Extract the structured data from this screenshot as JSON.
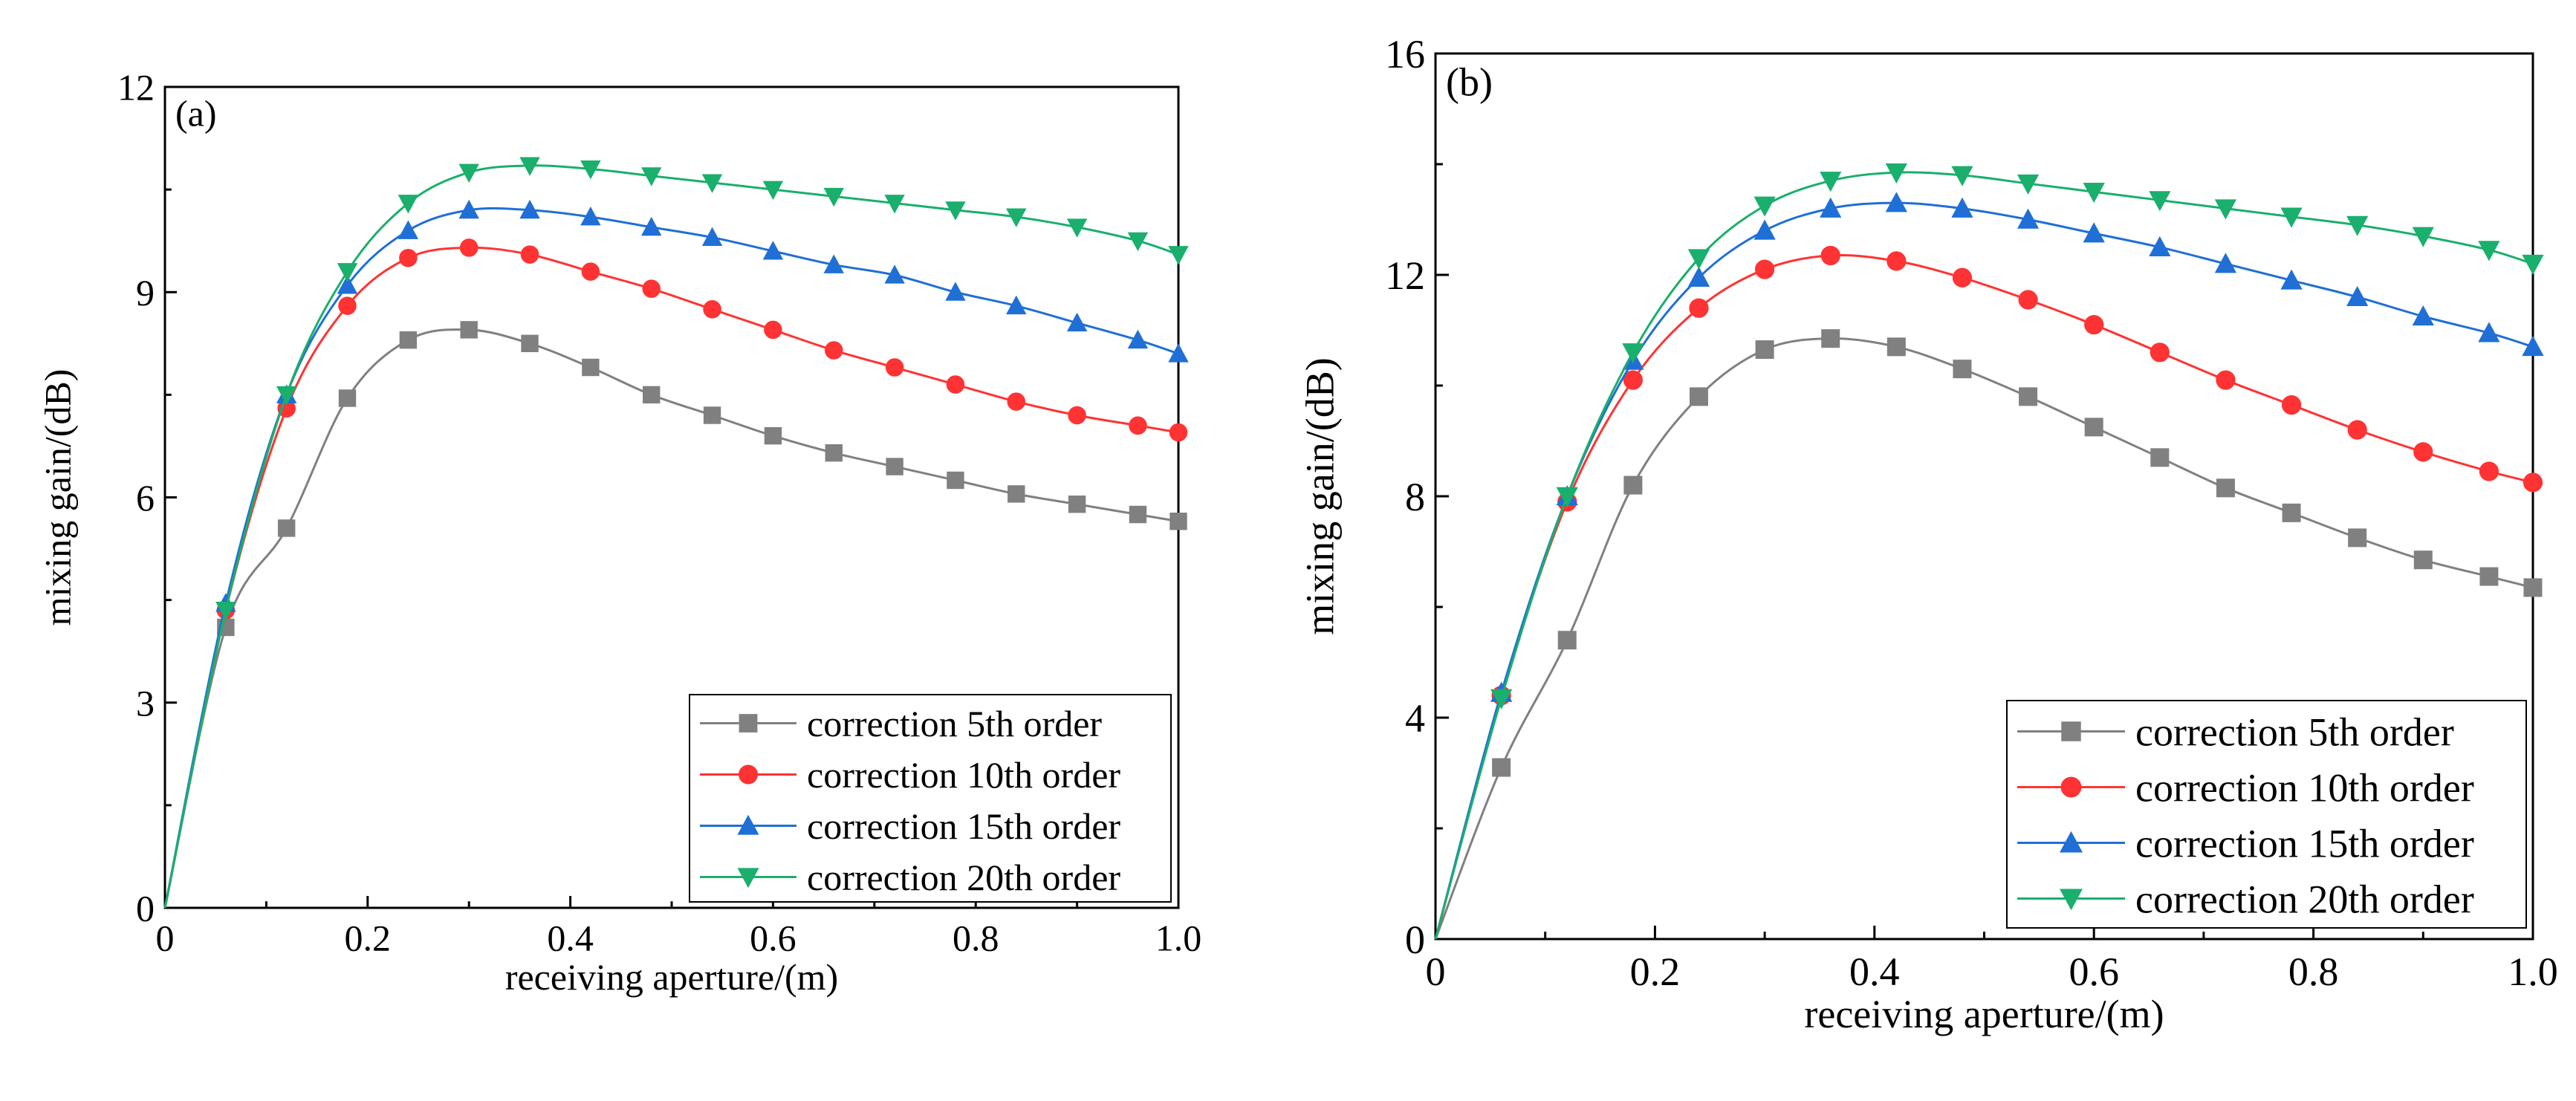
{
  "chart_data": [
    {
      "type": "line",
      "panel_label": "(a)",
      "xlabel": "receiving aperture/(m)",
      "ylabel": "mixing gain/(dB)",
      "xlim": [
        0,
        1.0
      ],
      "ylim": [
        0,
        12
      ],
      "xticks": [
        0,
        0.2,
        0.4,
        0.6,
        0.8,
        1.0
      ],
      "xtick_labels": [
        "0",
        "0.2",
        "0.4",
        "0.6",
        "0.8",
        "1.0"
      ],
      "yticks": [
        0,
        3,
        6,
        9,
        12
      ],
      "ytick_labels": [
        "0",
        "3",
        "6",
        "9",
        "12"
      ],
      "legend_position": "bottom-right",
      "x": [
        0,
        0.06,
        0.12,
        0.18,
        0.24,
        0.3,
        0.36,
        0.42,
        0.48,
        0.54,
        0.6,
        0.66,
        0.72,
        0.78,
        0.84,
        0.9,
        0.96,
        1.0
      ],
      "series": [
        {
          "name": "correction 5th order",
          "color": "#808080",
          "marker": "square",
          "values": [
            0,
            4.1,
            5.55,
            7.45,
            8.3,
            8.45,
            8.25,
            7.9,
            7.5,
            7.2,
            6.9,
            6.65,
            6.45,
            6.25,
            6.05,
            5.9,
            5.75,
            5.65
          ]
        },
        {
          "name": "correction 10th order",
          "color": "#ff3333",
          "marker": "circle",
          "values": [
            0,
            4.35,
            7.3,
            8.8,
            9.5,
            9.65,
            9.55,
            9.3,
            9.05,
            8.75,
            8.45,
            8.15,
            7.9,
            7.65,
            7.4,
            7.2,
            7.05,
            6.95
          ]
        },
        {
          "name": "correction 15th order",
          "color": "#1f6fd6",
          "marker": "triangle-up",
          "values": [
            0,
            4.45,
            7.5,
            9.1,
            9.9,
            10.2,
            10.2,
            10.1,
            9.95,
            9.8,
            9.6,
            9.4,
            9.25,
            9.0,
            8.8,
            8.55,
            8.3,
            8.1
          ]
        },
        {
          "name": "correction 20th order",
          "color": "#1aaf6c",
          "marker": "triangle-down",
          "values": [
            0,
            4.35,
            7.5,
            9.3,
            10.3,
            10.75,
            10.85,
            10.8,
            10.7,
            10.6,
            10.5,
            10.4,
            10.3,
            10.2,
            10.1,
            9.95,
            9.75,
            9.55
          ]
        }
      ]
    },
    {
      "type": "line",
      "panel_label": "(b)",
      "xlabel": "receiving aperture/(m)",
      "ylabel": "mixing gain/(dB)",
      "xlim": [
        0,
        1.0
      ],
      "ylim": [
        0,
        16
      ],
      "xticks": [
        0,
        0.2,
        0.4,
        0.6,
        0.8,
        1.0
      ],
      "xtick_labels": [
        "0",
        "0.2",
        "0.4",
        "0.6",
        "0.8",
        "1.0"
      ],
      "yticks": [
        0,
        4,
        8,
        12,
        16
      ],
      "ytick_labels": [
        "0",
        "4",
        "8",
        "12",
        "16"
      ],
      "legend_position": "bottom-right",
      "x": [
        0,
        0.06,
        0.12,
        0.18,
        0.24,
        0.3,
        0.36,
        0.42,
        0.48,
        0.54,
        0.6,
        0.66,
        0.72,
        0.78,
        0.84,
        0.9,
        0.96,
        1.0
      ],
      "series": [
        {
          "name": "correction 5th order",
          "color": "#808080",
          "marker": "square",
          "values": [
            0,
            3.1,
            5.4,
            8.2,
            9.8,
            10.65,
            10.85,
            10.7,
            10.3,
            9.8,
            9.25,
            8.7,
            8.15,
            7.7,
            7.25,
            6.85,
            6.55,
            6.35
          ]
        },
        {
          "name": "correction 10th order",
          "color": "#ff3333",
          "marker": "circle",
          "values": [
            0,
            4.4,
            7.9,
            10.1,
            11.4,
            12.1,
            12.35,
            12.25,
            11.95,
            11.55,
            11.1,
            10.6,
            10.1,
            9.65,
            9.2,
            8.8,
            8.45,
            8.25
          ]
        },
        {
          "name": "correction 15th order",
          "color": "#1f6fd6",
          "marker": "triangle-up",
          "values": [
            0,
            4.45,
            8.0,
            10.45,
            11.95,
            12.8,
            13.2,
            13.3,
            13.2,
            13.0,
            12.75,
            12.5,
            12.2,
            11.9,
            11.6,
            11.25,
            10.95,
            10.7
          ]
        },
        {
          "name": "correction 20th order",
          "color": "#1aaf6c",
          "marker": "triangle-down",
          "values": [
            0,
            4.35,
            8.0,
            10.6,
            12.3,
            13.25,
            13.7,
            13.85,
            13.8,
            13.65,
            13.5,
            13.35,
            13.2,
            13.05,
            12.9,
            12.7,
            12.45,
            12.2
          ]
        }
      ]
    }
  ]
}
